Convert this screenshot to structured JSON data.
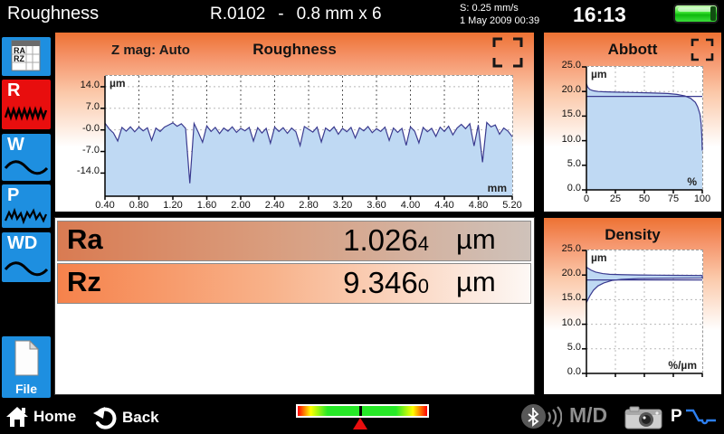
{
  "topbar": {
    "title": "Roughness",
    "program": "R.0102",
    "dash": "-",
    "range": "0.8 mm x 6",
    "speed": "S: 0.25 mm/s",
    "datetime": "1 May 2009  00:39",
    "clock": "16:13",
    "battery_icon": "battery-full-green"
  },
  "sidebar": {
    "buttons": [
      {
        "id": "ra-rz-table",
        "line1": "RA",
        "line2": "RZ",
        "icon": "table-icon"
      },
      {
        "id": "r",
        "label": "R",
        "icon": "roughness-wave-icon",
        "active": true
      },
      {
        "id": "w",
        "label": "W",
        "icon": "waviness-wave-icon"
      },
      {
        "id": "p",
        "label": "P",
        "icon": "primary-wave-icon"
      },
      {
        "id": "wd",
        "label": "WD",
        "icon": "wd-wave-icon"
      },
      {
        "id": "file",
        "label": "File",
        "icon": "file-icon"
      }
    ],
    "active_color": "#e80e0e",
    "button_color": "#1e8fe0"
  },
  "results": {
    "rows": [
      {
        "param": "Ra",
        "value": "1.026",
        "last_digit": "4",
        "unit": "µm"
      },
      {
        "param": "Rz",
        "value": "9.346",
        "last_digit": "0",
        "unit": "µm"
      }
    ]
  },
  "statusbar": {
    "home": "Home",
    "back": "Back",
    "mode": "M/D",
    "p_label": "P",
    "level_indicator_pct": 48
  },
  "colors": {
    "profile_fill": "#bfd9f3",
    "profile_stroke": "#3a3a8f",
    "panel_orange": "#ed7233",
    "selected_red": "#e80e0e",
    "sidebar_blue": "#1e8fe0"
  },
  "chart_data": [
    {
      "type": "area",
      "title": "Roughness",
      "zmag_label": "Z mag: Auto",
      "ylabel": "µm",
      "xlabel": "mm",
      "xlim": [
        0.4,
        5.2
      ],
      "ylim": [
        -21.5,
        17.5
      ],
      "x_tick_vals": [
        0.4,
        0.8,
        1.2,
        1.6,
        2.0,
        2.4,
        2.8,
        3.2,
        3.6,
        4.0,
        4.4,
        4.8,
        5.2
      ],
      "x_ticks": [
        "0.40",
        "0.80",
        "1.20",
        "1.60",
        "2.00",
        "2.40",
        "2.80",
        "3.20",
        "3.60",
        "4.00",
        "4.40",
        "4.80",
        "5.20"
      ],
      "y_tick_vals": [
        14,
        7,
        0,
        -7,
        -14
      ],
      "y_ticks": [
        "14.0",
        "7.0",
        "-0.0",
        "-7.0",
        "-14.0"
      ],
      "x_start": 0.4,
      "x_step": 0.05,
      "y": [
        2.2,
        0.3,
        -1.0,
        -3.6,
        0.8,
        -0.4,
        1.0,
        -0.6,
        0.9,
        -0.3,
        0.7,
        -3.4,
        0.6,
        -0.5,
        0.9,
        1.6,
        2.3,
        1.2,
        2.0,
        0.5,
        -17.3,
        2.1,
        -0.8,
        -4.0,
        1.3,
        -0.5,
        0.8,
        -1.2,
        0.6,
        -0.4,
        1.0,
        -0.8,
        0.5,
        -0.3,
        0.8,
        -3.6,
        0.7,
        -1.0,
        0.5,
        -4.3,
        0.9,
        -0.5,
        0.7,
        -1.1,
        0.6,
        -0.6,
        -5.1,
        1.1,
        0.2,
        -0.7,
        0.9,
        -3.9,
        0.6,
        -0.4,
        1.0,
        -1.4,
        0.5,
        -0.6,
        0.8,
        -2.6,
        0.7,
        -0.3,
        1.1,
        -0.9,
        0.4,
        -0.5,
        0.9,
        -3.4,
        0.6,
        -0.8,
        0.5,
        -5.0,
        1.0,
        -0.4,
        -4.2,
        0.8,
        -0.6,
        0.5,
        -2.1,
        0.9,
        -0.5,
        1.2,
        -1.6,
        0.6,
        1.8,
        0.4,
        2.0,
        -5.2,
        1.6,
        -10.5,
        2.4,
        1.0,
        1.6,
        -1.4,
        0.6,
        -0.4,
        -2.2
      ],
      "fill": "#bfd9f3",
      "stroke": "#3a3a8f"
    },
    {
      "type": "area",
      "title": "Abbott",
      "ylabel": "µm",
      "xlabel": "%",
      "xlim": [
        0,
        100
      ],
      "ylim": [
        0,
        25
      ],
      "x_tick_vals": [
        0,
        25,
        50,
        75,
        100
      ],
      "x_ticks": [
        "0",
        "25",
        "50",
        "75",
        "100"
      ],
      "y_tick_vals": [
        25,
        20,
        15,
        10,
        5,
        0
      ],
      "y_ticks": [
        "25.0",
        "20.0",
        "15.0",
        "10.0",
        "5.0",
        "0.0"
      ],
      "points": [
        [
          0,
          21.6
        ],
        [
          1,
          20.9
        ],
        [
          3,
          20.4
        ],
        [
          6,
          20.15
        ],
        [
          10,
          20.0
        ],
        [
          15,
          19.95
        ],
        [
          25,
          19.88
        ],
        [
          40,
          19.8
        ],
        [
          55,
          19.72
        ],
        [
          70,
          19.6
        ],
        [
          78,
          19.42
        ],
        [
          85,
          19.1
        ],
        [
          90,
          18.6
        ],
        [
          94,
          17.8
        ],
        [
          96,
          16.9
        ],
        [
          98,
          15.4
        ],
        [
          99,
          13.5
        ],
        [
          99.6,
          11.0
        ],
        [
          100,
          8.0
        ]
      ],
      "ref_line_y": 19.0,
      "fill": "#bfd9f3",
      "stroke": "#3a3a8f"
    },
    {
      "type": "band",
      "title": "Density",
      "ylabel": "µm",
      "xlabel": "%/µm",
      "xlim": [
        0,
        100
      ],
      "ylim": [
        0,
        25
      ],
      "x_tick_vals": [
        0,
        25,
        50,
        75,
        100
      ],
      "x_ticks": [],
      "y_tick_vals": [
        25,
        20,
        15,
        10,
        5,
        0
      ],
      "y_ticks": [
        "25.0",
        "20.0",
        "15.0",
        "10.0",
        "5.0",
        "0.0"
      ],
      "upper": [
        [
          0,
          21.6
        ],
        [
          4,
          21.0
        ],
        [
          8,
          20.6
        ],
        [
          14,
          20.3
        ],
        [
          20,
          20.15
        ],
        [
          30,
          20.08
        ],
        [
          45,
          20.02
        ],
        [
          60,
          19.98
        ],
        [
          75,
          19.95
        ],
        [
          100,
          19.9
        ]
      ],
      "lower": [
        [
          0,
          14.4
        ],
        [
          3,
          15.8
        ],
        [
          6,
          16.9
        ],
        [
          10,
          17.8
        ],
        [
          15,
          18.4
        ],
        [
          22,
          18.9
        ],
        [
          30,
          19.12
        ],
        [
          45,
          19.28
        ],
        [
          60,
          19.33
        ],
        [
          100,
          19.4
        ]
      ],
      "ref_line_y": 19.0,
      "fill": "#bfd9f3",
      "stroke": "#3a3a8f"
    }
  ]
}
